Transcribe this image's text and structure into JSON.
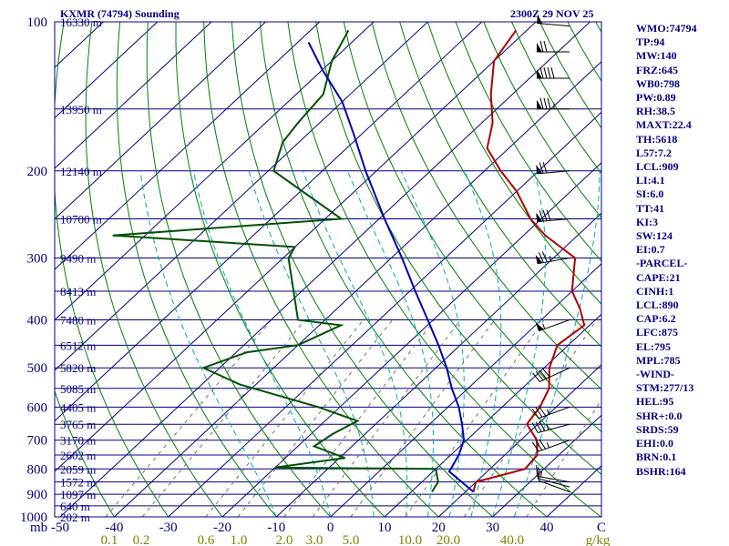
{
  "header": {
    "station": "KXMR (74794) Sounding",
    "datetime": "2300Z 29 NOV 25"
  },
  "indices": [
    "WMO:74794",
    "TP:94",
    "MW:140",
    "FRZ:645",
    "WB0:798",
    "PW:0.89",
    "RH:38.5",
    "MAXT:22.4",
    "TH:5618",
    "L57:7.2",
    "LCL:909",
    "LI:4.1",
    "SI:6.0",
    "TT:41",
    "KI:3",
    "SW:124",
    "EI:0.7",
    "-PARCEL-",
    "CAPE:21",
    "CINH:1",
    "LCL:890",
    "CAP:6.2",
    "LFC:875",
    "EL:795",
    "MPL:785",
    "-WIND-",
    "STM:277/13",
    "HEL:95",
    "SHR+:0.0",
    "SRDS:59",
    "EHI:0.0",
    "BRN:0.1",
    "BSHR:164"
  ],
  "colors": {
    "frame": "#000080",
    "isobar": "#000080",
    "isotherm": "#000080",
    "dry_adiabat": "#008000",
    "moist_adiabat": "#00aaaa",
    "mixing_ratio": "#707070",
    "temperature": "#b00000",
    "dewpoint": "#005000",
    "parcel": "#0000b0",
    "mixing_label": "#808000",
    "wind_barb": "#000000"
  },
  "chart_data": {
    "type": "skew-t",
    "pressure_levels_mb": [
      100,
      200,
      300,
      400,
      500,
      600,
      700,
      800,
      900,
      1000
    ],
    "x_axis_unit": "mb",
    "temperature_ticks_c": [
      -50,
      -40,
      -30,
      -20,
      -10,
      0,
      10,
      20,
      30,
      40,
      "C"
    ],
    "mixing_ratio_ticks_gkg": [
      "0.1",
      "0.2",
      "0.6",
      "1.0",
      "2.0",
      "3.0",
      "5.0",
      "10.0",
      "20.0",
      "40.0",
      "g/kg"
    ],
    "height_labels": [
      {
        "p": 100,
        "label": "16330 m"
      },
      {
        "p": 150,
        "label": "13950 m"
      },
      {
        "p": 200,
        "label": "12140 m"
      },
      {
        "p": 250,
        "label": "10700 m"
      },
      {
        "p": 300,
        "label": "9490 m"
      },
      {
        "p": 350,
        "label": "8413 m"
      },
      {
        "p": 400,
        "label": "7480 m"
      },
      {
        "p": 450,
        "label": "6512 m"
      },
      {
        "p": 500,
        "label": "5820 m"
      },
      {
        "p": 550,
        "label": "5085 m"
      },
      {
        "p": 600,
        "label": "4405 m"
      },
      {
        "p": 650,
        "label": "3765 m"
      },
      {
        "p": 700,
        "label": "3170 m"
      },
      {
        "p": 750,
        "label": "2602 m"
      },
      {
        "p": 800,
        "label": "2059 m"
      },
      {
        "p": 850,
        "label": "1572 m"
      },
      {
        "p": 900,
        "label": "1097 m"
      },
      {
        "p": 950,
        "label": "640 m"
      },
      {
        "p": 1000,
        "label": "202 m"
      }
    ],
    "series": [
      {
        "role": "temperature",
        "points": [
          [
            890,
            21.5
          ],
          [
            850,
            20
          ],
          [
            800,
            26.5
          ],
          [
            750,
            26
          ],
          [
            700,
            23
          ],
          [
            650,
            18
          ],
          [
            600,
            17
          ],
          [
            550,
            15
          ],
          [
            500,
            11
          ],
          [
            450,
            8
          ],
          [
            410,
            9
          ],
          [
            380,
            5
          ],
          [
            350,
            0
          ],
          [
            300,
            -6
          ],
          [
            270,
            -16
          ],
          [
            250,
            -22
          ],
          [
            220,
            -30
          ],
          [
            200,
            -37
          ],
          [
            180,
            -44
          ],
          [
            160,
            -48
          ],
          [
            140,
            -54
          ],
          [
            120,
            -60
          ],
          [
            104,
            -62
          ]
        ]
      },
      {
        "role": "dewpoint",
        "points": [
          [
            890,
            13.8
          ],
          [
            850,
            13
          ],
          [
            800,
            10
          ],
          [
            795,
            -20
          ],
          [
            760,
            -9
          ],
          [
            720,
            -17
          ],
          [
            680,
            -16
          ],
          [
            640,
            -14
          ],
          [
            600,
            -24
          ],
          [
            540,
            -43
          ],
          [
            500,
            -53
          ],
          [
            465,
            -48
          ],
          [
            450,
            -40
          ],
          [
            410,
            -36
          ],
          [
            400,
            -45
          ],
          [
            300,
            -59
          ],
          [
            285,
            -60
          ],
          [
            270,
            -96
          ],
          [
            250,
            -57
          ],
          [
            200,
            -79
          ],
          [
            175,
            -83
          ],
          [
            160,
            -84
          ],
          [
            140,
            -85
          ],
          [
            120,
            -90
          ],
          [
            104,
            -93
          ]
        ]
      },
      {
        "role": "parcel",
        "points": [
          [
            890,
            21.5
          ],
          [
            810,
            13
          ],
          [
            750,
            11.5
          ],
          [
            700,
            9.5
          ],
          [
            650,
            6
          ],
          [
            600,
            2
          ],
          [
            550,
            -3
          ],
          [
            500,
            -8
          ],
          [
            450,
            -14
          ],
          [
            400,
            -21
          ],
          [
            350,
            -29
          ],
          [
            300,
            -38
          ],
          [
            250,
            -49
          ],
          [
            200,
            -62
          ],
          [
            170,
            -71
          ],
          [
            145,
            -80
          ],
          [
            125,
            -90
          ],
          [
            110,
            -98
          ]
        ]
      }
    ],
    "wind_barbs": [
      {
        "p": 890,
        "dir": 290,
        "spd": 10
      },
      {
        "p": 870,
        "dir": 285,
        "spd": 10
      },
      {
        "p": 850,
        "dir": 280,
        "spd": 15
      },
      {
        "p": 700,
        "dir": 250,
        "spd": 35
      },
      {
        "p": 650,
        "dir": 255,
        "spd": 35
      },
      {
        "p": 600,
        "dir": 250,
        "spd": 35
      },
      {
        "p": 500,
        "dir": 245,
        "spd": 40
      },
      {
        "p": 400,
        "dir": 250,
        "spd": 55
      },
      {
        "p": 300,
        "dir": 260,
        "spd": 75
      },
      {
        "p": 250,
        "dir": 265,
        "spd": 80
      },
      {
        "p": 200,
        "dir": 265,
        "spd": 70
      },
      {
        "p": 150,
        "dir": 270,
        "spd": 85
      },
      {
        "p": 130,
        "dir": 270,
        "spd": 90
      },
      {
        "p": 115,
        "dir": 270,
        "spd": 70
      },
      {
        "p": 102,
        "dir": 275,
        "spd": 50
      }
    ]
  }
}
